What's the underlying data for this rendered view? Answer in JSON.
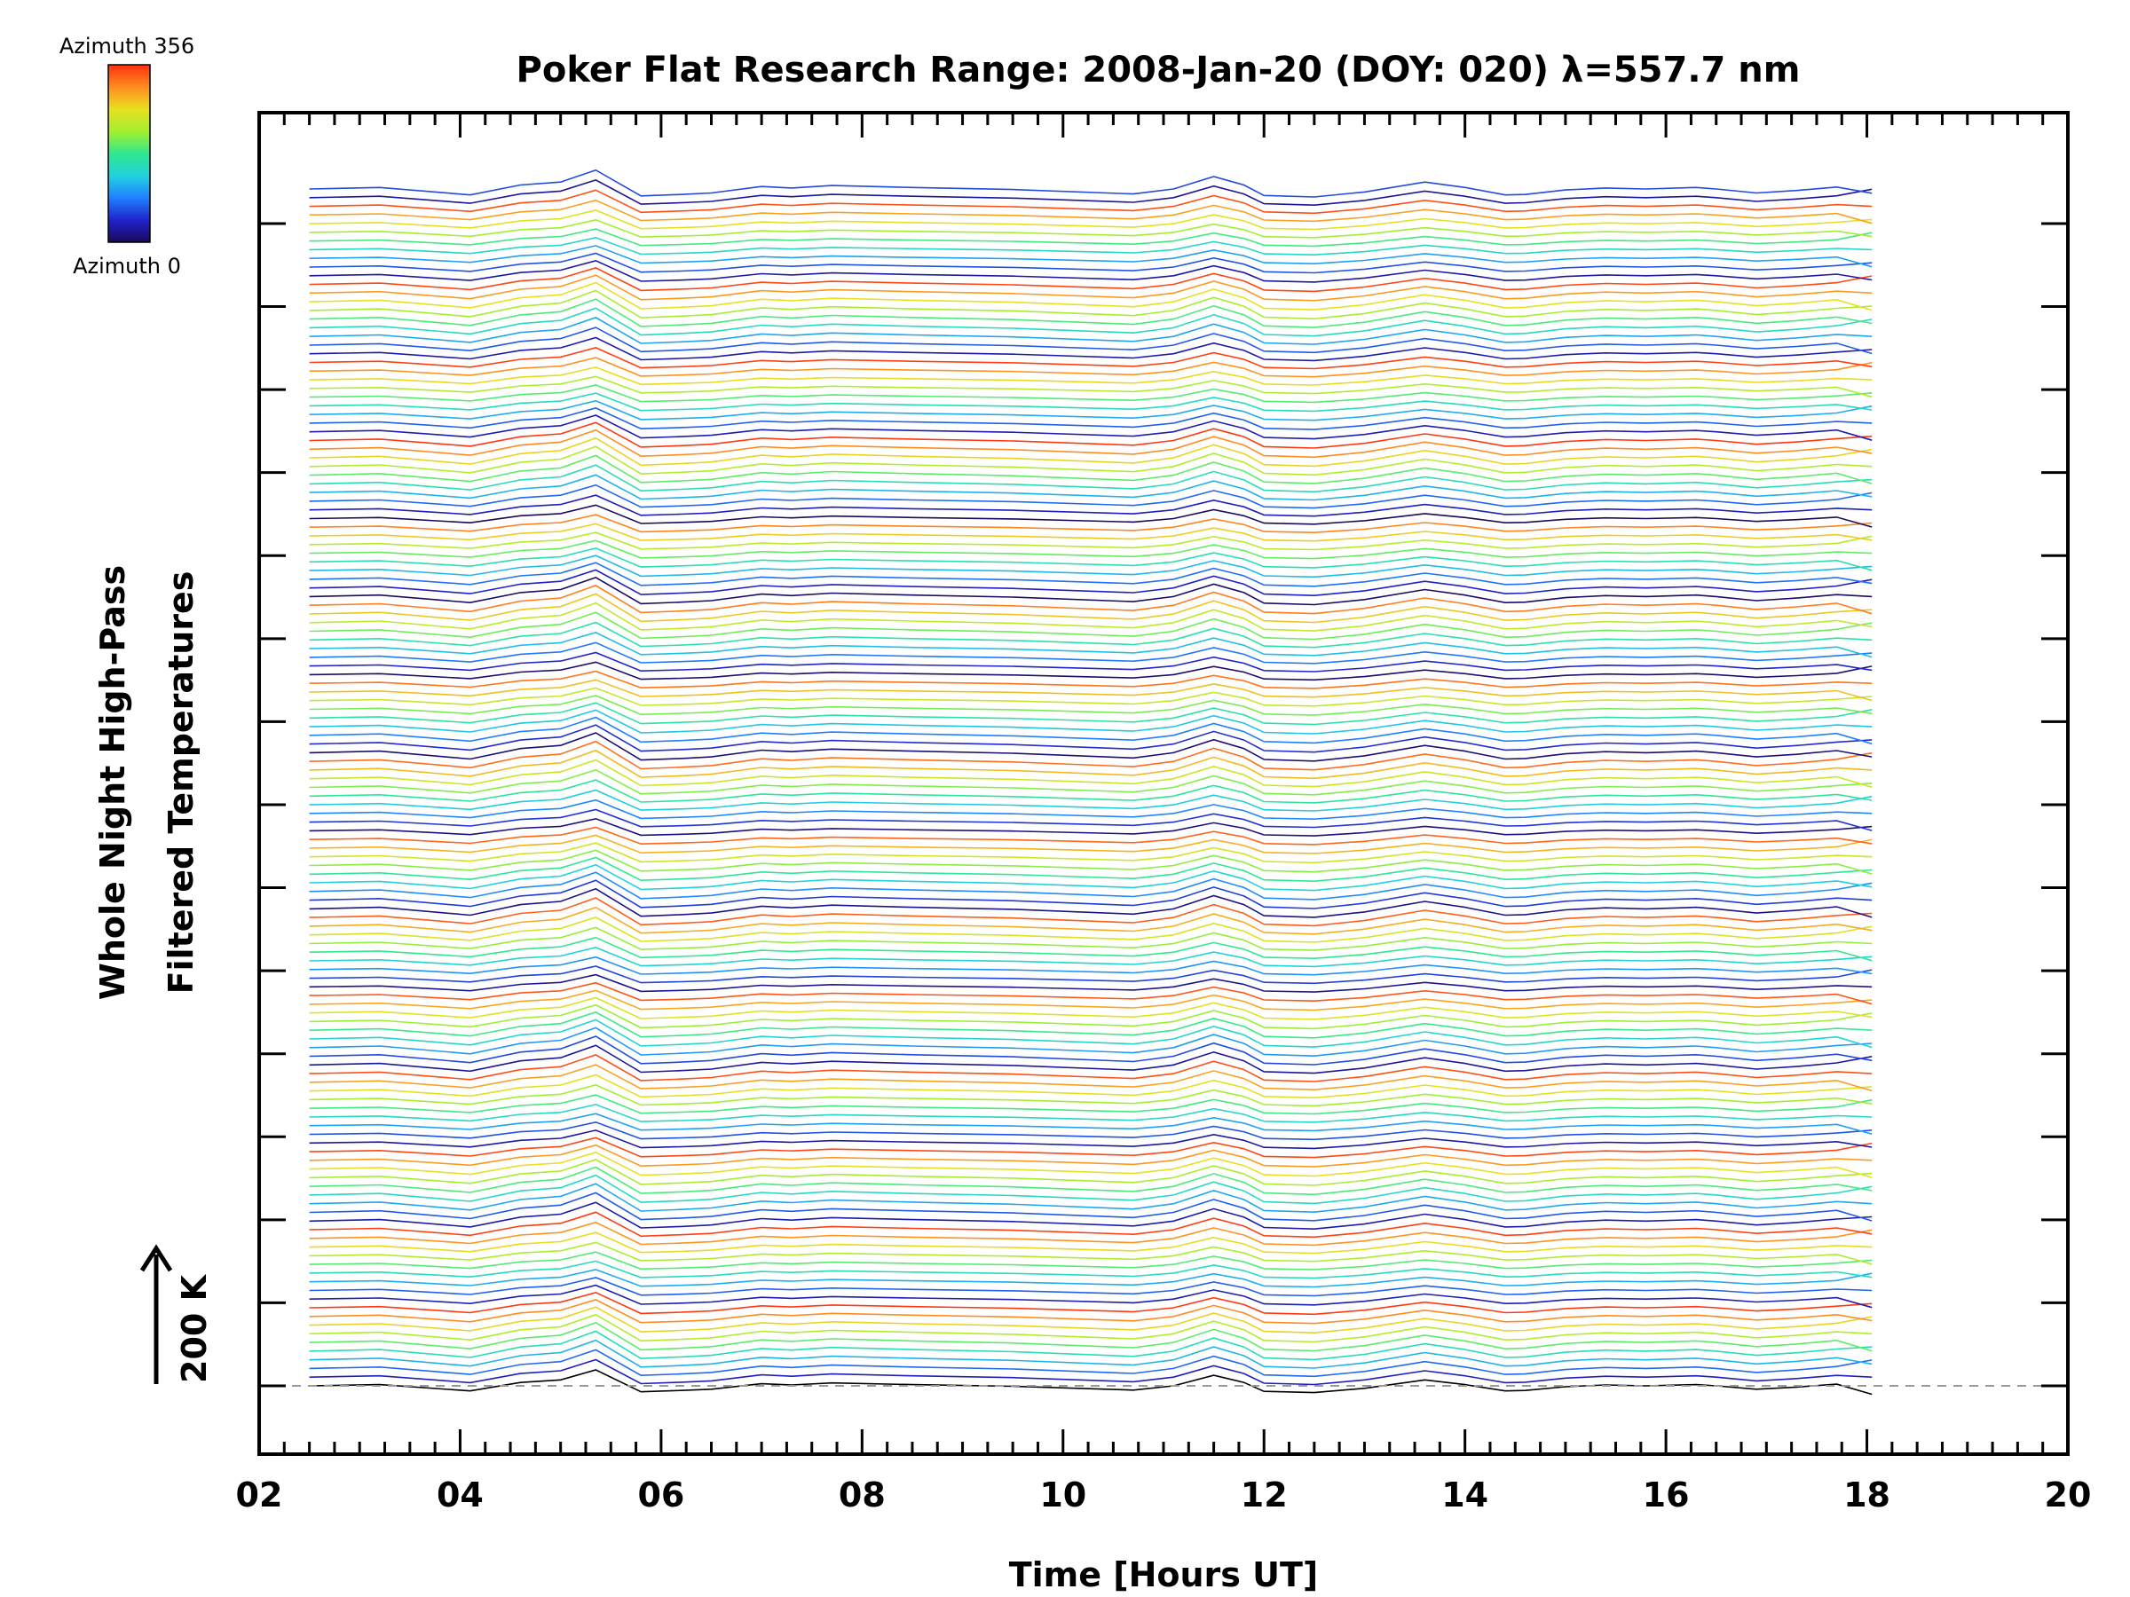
{
  "chart_data": {
    "type": "line",
    "title": "Poker Flat Research Range: 2008-Jan-20 (DOY: 020) λ=557.7 nm",
    "xlabel": "Time [Hours UT]",
    "ylabel_line1": "Whole Night High-Pass",
    "ylabel_line2": "Filtered Temperatures",
    "xlim": [
      2,
      20
    ],
    "x_ticks": [
      "02",
      "04",
      "06",
      "08",
      "10",
      "12",
      "14",
      "16",
      "18",
      "20"
    ],
    "scale_bar_label": "200 K",
    "colorbar": {
      "top_label": "Azimuth 356",
      "bottom_label": "Azimuth 0",
      "colors": [
        "#1a0a5a",
        "#2020c8",
        "#2080ff",
        "#20d0e0",
        "#30e890",
        "#a0f030",
        "#e8e020",
        "#ff9020",
        "#ff3010"
      ]
    },
    "series_count": 139,
    "x": [
      2.5,
      3.2,
      4.1,
      4.6,
      5.0,
      5.35,
      5.8,
      6.2,
      6.5,
      7.0,
      7.3,
      7.7,
      8.5,
      9.5,
      10.7,
      11.1,
      11.5,
      11.8,
      12.0,
      12.5,
      13.0,
      13.6,
      14.0,
      14.4,
      14.6,
      15.0,
      15.4,
      15.8,
      16.3,
      16.5,
      16.9,
      17.3,
      17.7,
      18.05
    ],
    "profile_K": [
      0,
      3,
      -12,
      8,
      14,
      38,
      -14,
      -11,
      -8,
      5,
      2,
      7,
      3,
      -1,
      -10,
      0,
      25,
      8,
      -13,
      -16,
      -6,
      14,
      3,
      -12,
      -11,
      -2,
      2,
      0,
      3,
      0,
      -8,
      -3,
      4,
      28
    ],
    "ylim_K": [
      -80,
      2840
    ],
    "baseline_K": 0
  }
}
